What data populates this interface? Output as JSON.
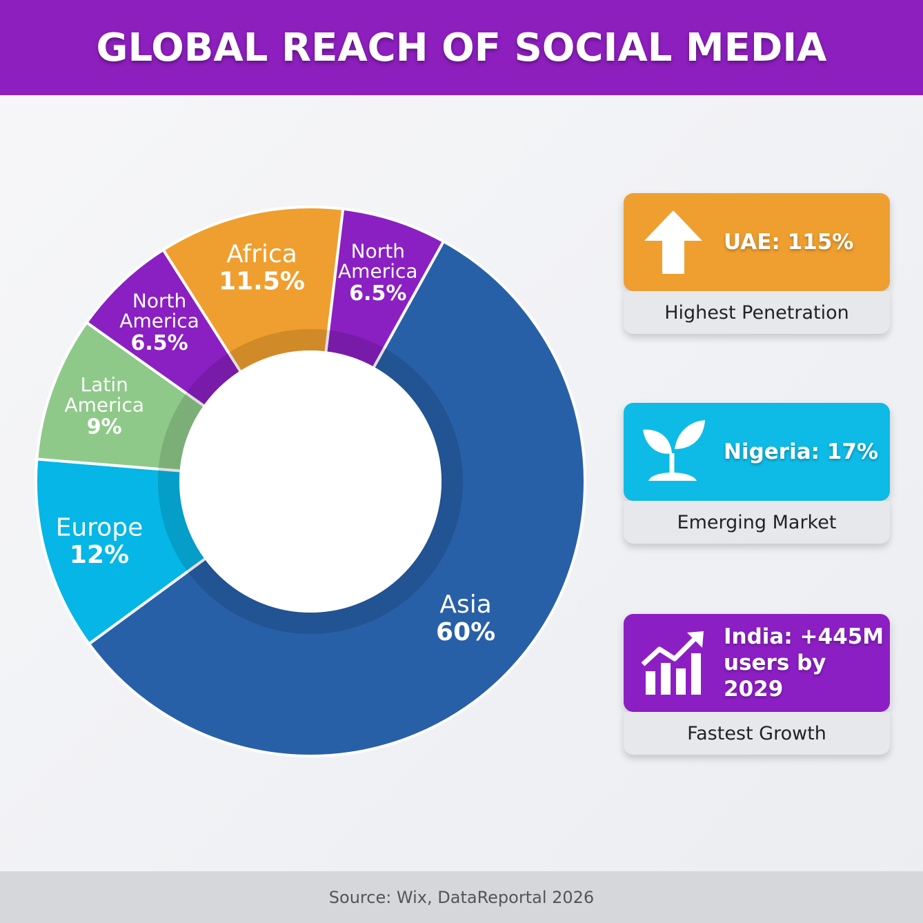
{
  "header": {
    "title": "GLOBAL REACH OF SOCIAL MEDIA"
  },
  "chart_data": {
    "type": "pie",
    "variant": "donut",
    "title": "",
    "slices": [
      {
        "label": "Asia",
        "value_label": "60%",
        "value": 60,
        "color": "#2860a8",
        "text_color": "#ffffff",
        "label_lines": [
          "Asia"
        ]
      },
      {
        "label": "Europe",
        "value_label": "12%",
        "value": 12,
        "color": "#05b6e6",
        "text_color": "#ffffff",
        "label_lines": [
          "Europe"
        ]
      },
      {
        "label": "Latin America",
        "value_label": "9%",
        "value": 9,
        "color": "#8ec989",
        "text_color": "#ffffff",
        "label_lines": [
          "Latin",
          "America"
        ]
      },
      {
        "label": "North America",
        "value_label": "6.5%",
        "value": 6.5,
        "color": "#8a1fc2",
        "text_color": "#ffffff",
        "label_lines": [
          "North",
          "America"
        ]
      },
      {
        "label": "Africa",
        "value_label": "11.5%",
        "value": 11.5,
        "color": "#ef9f2f",
        "text_color": "#ffffff",
        "label_lines": [
          "Africa"
        ]
      },
      {
        "label": "North America",
        "value_label": "6.5%",
        "value": 6.5,
        "color": "#8a1fc2",
        "text_color": "#ffffff",
        "label_lines": [
          "North",
          "America"
        ]
      }
    ]
  },
  "cards": [
    {
      "value": "UAE: 115%",
      "caption": "Highest Penetration",
      "color": "#ef9f2f",
      "icon": "arrow-up-icon"
    },
    {
      "value": "Nigeria: 17%",
      "caption": "Emerging Market",
      "color": "#0ebbe6",
      "icon": "sprout-icon"
    },
    {
      "value": "India: +445M\nusers by 2029",
      "caption": "Fastest Growth",
      "color": "#8c1fc4",
      "icon": "growth-chart-icon"
    }
  ],
  "footer": {
    "source": "Source: Wix, DataReportal 2026"
  }
}
